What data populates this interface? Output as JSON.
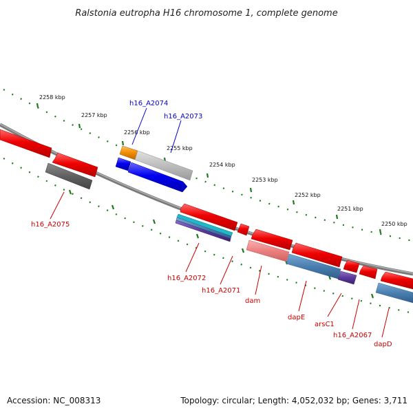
{
  "title": "Ralstonia eutropha H16 chromosome 1, complete genome",
  "footer": {
    "accession": "Accession: NC_008313",
    "topology": "Topology: circular; Length: 4,052,032 bp; Genes: 3,711"
  },
  "ruler_ticks": [
    "2258 kbp",
    "2257 kbp",
    "2256 kbp",
    "2255 kbp",
    "2254 kbp",
    "2253 kbp",
    "2252 kbp",
    "2251 kbp",
    "2250 kbp"
  ],
  "gene_labels": {
    "forward": [
      "h16_A2074",
      "h16_A2073"
    ],
    "reverse": [
      "h16_A2075",
      "h16_A2072",
      "h16_A2071",
      "dam",
      "dapE",
      "arsC1",
      "h16_A2067",
      "dapD"
    ]
  },
  "colors": {
    "label_forward": "#0000cc",
    "label_reverse": "#cc0000",
    "ruler": "#1a7a1a",
    "backbone": "#808080",
    "gene_red": "#ee0000",
    "gene_blue": "#0000ee",
    "gene_gray": "#b8b8b8",
    "gene_dark_gray": "#606060",
    "gene_orange": "#f08c00",
    "gene_pink": "#ee8080",
    "gene_steel": "#4a7fb0",
    "gene_cyan": "#20b8c8",
    "gene_purple": "#5a3a9a"
  }
}
